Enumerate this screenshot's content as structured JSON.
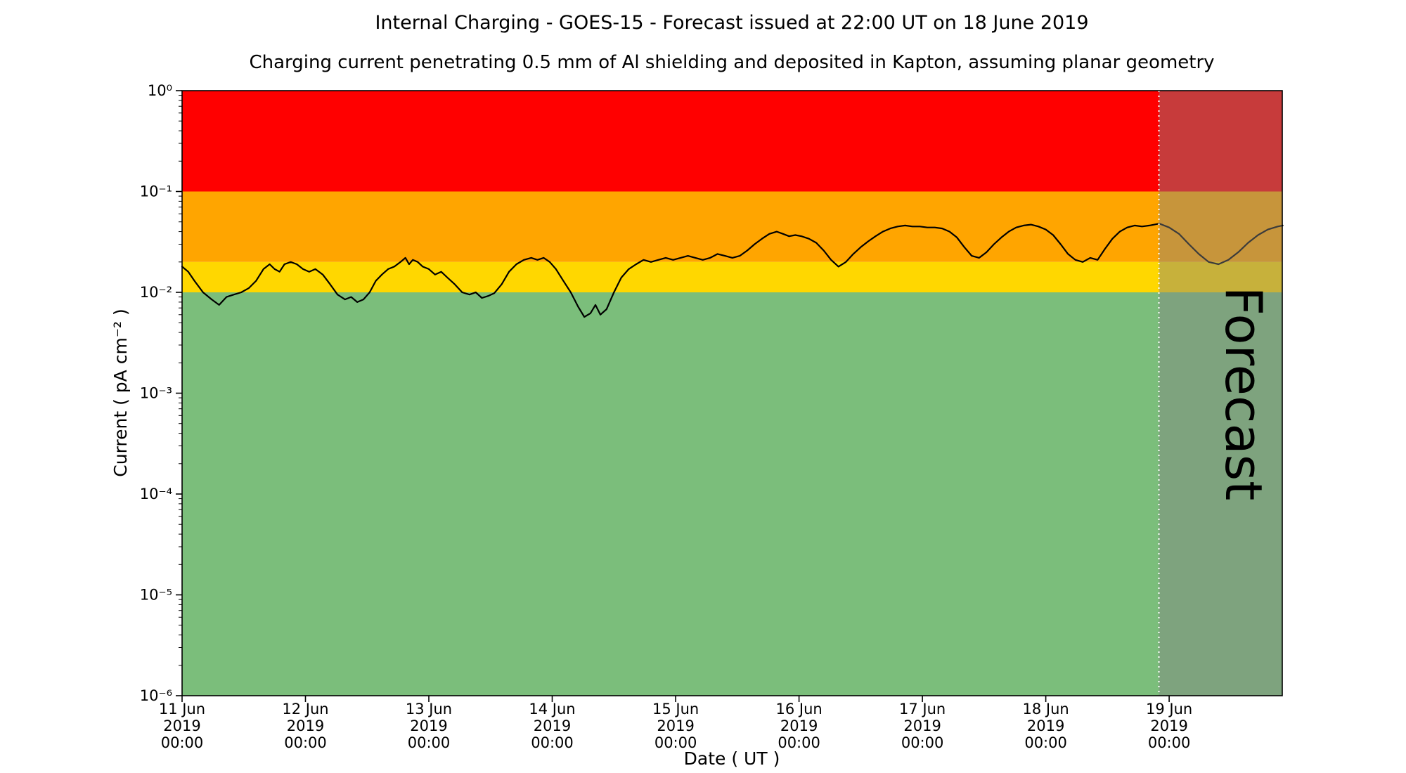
{
  "chart_data": {
    "type": "line",
    "title": "Internal Charging - GOES-15 - Forecast issued at 22:00 UT on 18 June 2019",
    "subtitle": "Charging current penetrating 0.5 mm of Al shielding and deposited in Kapton, assuming planar geometry",
    "xlabel": "Date ( UT )",
    "ylabel": "Current ( pA cm⁻² )",
    "y_scale": "log",
    "ylim": [
      1e-06,
      1
    ],
    "x_range_days": 8.9167,
    "grid": false,
    "y_ticks": [
      {
        "value": 1,
        "label": "10⁰"
      },
      {
        "value": 0.1,
        "label": "10⁻¹"
      },
      {
        "value": 0.01,
        "label": "10⁻²"
      },
      {
        "value": 0.001,
        "label": "10⁻³"
      },
      {
        "value": 0.0001,
        "label": "10⁻⁴"
      },
      {
        "value": 1e-05,
        "label": "10⁻⁵"
      },
      {
        "value": 1e-06,
        "label": "10⁻⁶"
      }
    ],
    "x_ticks": [
      {
        "day": 0,
        "lines": [
          "11 Jun",
          "2019",
          "00:00"
        ]
      },
      {
        "day": 1,
        "lines": [
          "12 Jun",
          "2019",
          "00:00"
        ]
      },
      {
        "day": 2,
        "lines": [
          "13 Jun",
          "2019",
          "00:00"
        ]
      },
      {
        "day": 3,
        "lines": [
          "14 Jun",
          "2019",
          "00:00"
        ]
      },
      {
        "day": 4,
        "lines": [
          "15 Jun",
          "2019",
          "00:00"
        ]
      },
      {
        "day": 5,
        "lines": [
          "16 Jun",
          "2019",
          "00:00"
        ]
      },
      {
        "day": 6,
        "lines": [
          "17 Jun",
          "2019",
          "00:00"
        ]
      },
      {
        "day": 7,
        "lines": [
          "18 Jun",
          "2019",
          "00:00"
        ]
      },
      {
        "day": 8,
        "lines": [
          "19 Jun",
          "2019",
          "00:00"
        ]
      }
    ],
    "bands": [
      {
        "name": "red",
        "from": 0.1,
        "to": 1,
        "color": "#FF0000"
      },
      {
        "name": "orange",
        "from": 0.02,
        "to": 0.1,
        "color": "#FFA500"
      },
      {
        "name": "yellow",
        "from": 0.01,
        "to": 0.02,
        "color": "#FFD700"
      },
      {
        "name": "green",
        "from": 1e-06,
        "to": 0.01,
        "color": "#7BBE7B"
      }
    ],
    "forecast": {
      "start_day": 7.9167,
      "label": "Forecast",
      "overlay_color": "rgba(130,130,130,0.45)",
      "label_color": "rgba(70,70,70,0.55)",
      "divider_color": "#ffffff"
    },
    "series": [
      {
        "name": "charging-current",
        "color": "#000000",
        "points": [
          [
            0.0,
            0.018
          ],
          [
            0.05,
            0.016
          ],
          [
            0.1,
            0.013
          ],
          [
            0.17,
            0.01
          ],
          [
            0.24,
            0.0085
          ],
          [
            0.3,
            0.0075
          ],
          [
            0.36,
            0.009
          ],
          [
            0.42,
            0.0095
          ],
          [
            0.48,
            0.01
          ],
          [
            0.54,
            0.011
          ],
          [
            0.6,
            0.013
          ],
          [
            0.66,
            0.017
          ],
          [
            0.71,
            0.019
          ],
          [
            0.75,
            0.017
          ],
          [
            0.79,
            0.016
          ],
          [
            0.83,
            0.019
          ],
          [
            0.88,
            0.02
          ],
          [
            0.93,
            0.019
          ],
          [
            0.98,
            0.017
          ],
          [
            1.03,
            0.016
          ],
          [
            1.08,
            0.017
          ],
          [
            1.14,
            0.015
          ],
          [
            1.2,
            0.012
          ],
          [
            1.26,
            0.0095
          ],
          [
            1.32,
            0.0085
          ],
          [
            1.37,
            0.009
          ],
          [
            1.42,
            0.008
          ],
          [
            1.47,
            0.0085
          ],
          [
            1.52,
            0.01
          ],
          [
            1.57,
            0.013
          ],
          [
            1.62,
            0.015
          ],
          [
            1.67,
            0.017
          ],
          [
            1.72,
            0.018
          ],
          [
            1.77,
            0.02
          ],
          [
            1.81,
            0.022
          ],
          [
            1.84,
            0.019
          ],
          [
            1.87,
            0.021
          ],
          [
            1.91,
            0.02
          ],
          [
            1.95,
            0.018
          ],
          [
            2.0,
            0.017
          ],
          [
            2.05,
            0.015
          ],
          [
            2.1,
            0.016
          ],
          [
            2.15,
            0.014
          ],
          [
            2.21,
            0.012
          ],
          [
            2.27,
            0.01
          ],
          [
            2.33,
            0.0095
          ],
          [
            2.38,
            0.01
          ],
          [
            2.43,
            0.0088
          ],
          [
            2.48,
            0.0092
          ],
          [
            2.53,
            0.0098
          ],
          [
            2.59,
            0.012
          ],
          [
            2.65,
            0.016
          ],
          [
            2.71,
            0.019
          ],
          [
            2.77,
            0.021
          ],
          [
            2.83,
            0.022
          ],
          [
            2.88,
            0.021
          ],
          [
            2.93,
            0.022
          ],
          [
            2.98,
            0.02
          ],
          [
            3.03,
            0.017
          ],
          [
            3.09,
            0.013
          ],
          [
            3.15,
            0.01
          ],
          [
            3.21,
            0.0072
          ],
          [
            3.26,
            0.0057
          ],
          [
            3.31,
            0.0062
          ],
          [
            3.35,
            0.0075
          ],
          [
            3.39,
            0.006
          ],
          [
            3.44,
            0.0068
          ],
          [
            3.5,
            0.01
          ],
          [
            3.56,
            0.014
          ],
          [
            3.62,
            0.017
          ],
          [
            3.68,
            0.019
          ],
          [
            3.74,
            0.021
          ],
          [
            3.8,
            0.02
          ],
          [
            3.86,
            0.021
          ],
          [
            3.92,
            0.022
          ],
          [
            3.98,
            0.021
          ],
          [
            4.04,
            0.022
          ],
          [
            4.1,
            0.023
          ],
          [
            4.16,
            0.022
          ],
          [
            4.22,
            0.021
          ],
          [
            4.28,
            0.022
          ],
          [
            4.34,
            0.024
          ],
          [
            4.4,
            0.023
          ],
          [
            4.46,
            0.022
          ],
          [
            4.52,
            0.023
          ],
          [
            4.58,
            0.026
          ],
          [
            4.64,
            0.03
          ],
          [
            4.7,
            0.034
          ],
          [
            4.76,
            0.038
          ],
          [
            4.82,
            0.04
          ],
          [
            4.87,
            0.038
          ],
          [
            4.92,
            0.036
          ],
          [
            4.97,
            0.037
          ],
          [
            5.02,
            0.036
          ],
          [
            5.08,
            0.034
          ],
          [
            5.14,
            0.031
          ],
          [
            5.2,
            0.026
          ],
          [
            5.26,
            0.021
          ],
          [
            5.32,
            0.018
          ],
          [
            5.38,
            0.02
          ],
          [
            5.44,
            0.024
          ],
          [
            5.5,
            0.028
          ],
          [
            5.56,
            0.032
          ],
          [
            5.62,
            0.036
          ],
          [
            5.68,
            0.04
          ],
          [
            5.74,
            0.043
          ],
          [
            5.8,
            0.045
          ],
          [
            5.86,
            0.046
          ],
          [
            5.92,
            0.045
          ],
          [
            5.98,
            0.045
          ],
          [
            6.04,
            0.044
          ],
          [
            6.1,
            0.044
          ],
          [
            6.16,
            0.043
          ],
          [
            6.22,
            0.04
          ],
          [
            6.28,
            0.035
          ],
          [
            6.34,
            0.028
          ],
          [
            6.4,
            0.023
          ],
          [
            6.46,
            0.022
          ],
          [
            6.52,
            0.025
          ],
          [
            6.58,
            0.03
          ],
          [
            6.64,
            0.035
          ],
          [
            6.7,
            0.04
          ],
          [
            6.76,
            0.044
          ],
          [
            6.82,
            0.046
          ],
          [
            6.88,
            0.047
          ],
          [
            6.94,
            0.045
          ],
          [
            7.0,
            0.042
          ],
          [
            7.06,
            0.037
          ],
          [
            7.12,
            0.03
          ],
          [
            7.18,
            0.024
          ],
          [
            7.24,
            0.021
          ],
          [
            7.3,
            0.02
          ],
          [
            7.36,
            0.022
          ],
          [
            7.42,
            0.021
          ],
          [
            7.48,
            0.027
          ],
          [
            7.54,
            0.034
          ],
          [
            7.6,
            0.04
          ],
          [
            7.66,
            0.044
          ],
          [
            7.72,
            0.046
          ],
          [
            7.78,
            0.045
          ],
          [
            7.84,
            0.046
          ],
          [
            7.92,
            0.048
          ],
          [
            8.0,
            0.044
          ],
          [
            8.08,
            0.038
          ],
          [
            8.16,
            0.03
          ],
          [
            8.24,
            0.024
          ],
          [
            8.32,
            0.02
          ],
          [
            8.4,
            0.019
          ],
          [
            8.48,
            0.021
          ],
          [
            8.56,
            0.025
          ],
          [
            8.64,
            0.031
          ],
          [
            8.72,
            0.037
          ],
          [
            8.8,
            0.042
          ],
          [
            8.88,
            0.045
          ],
          [
            8.92,
            0.046
          ]
        ]
      }
    ]
  }
}
